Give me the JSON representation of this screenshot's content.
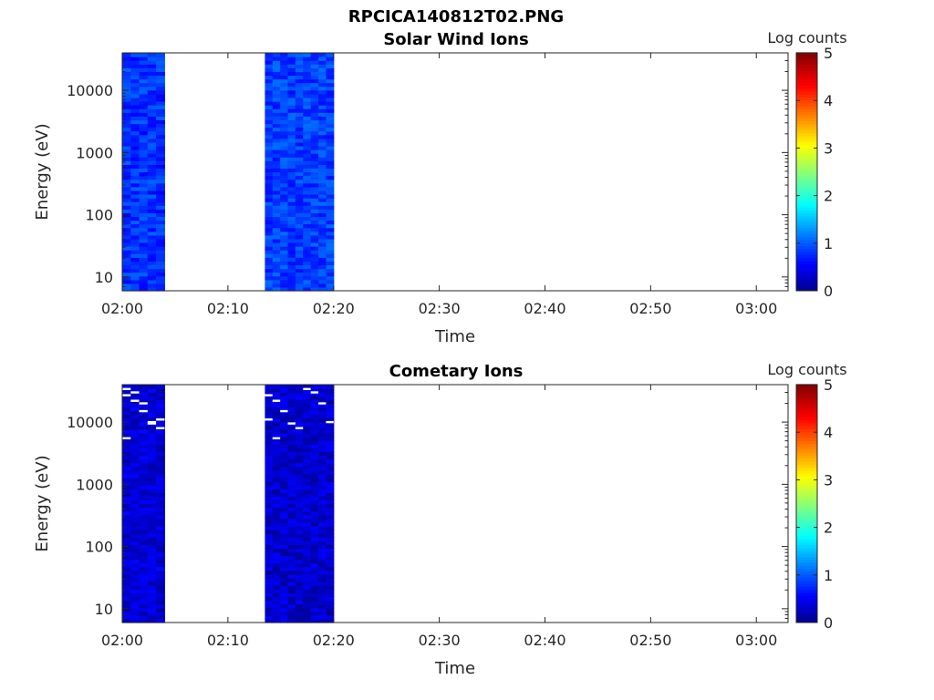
{
  "figure_title": "RPCICA140812T02.PNG",
  "colors": {
    "colormap": [
      "#00008f",
      "#0000ff",
      "#00ffff",
      "#ffff00",
      "#ff0000",
      "#800000"
    ],
    "empty": "#ffffff",
    "gap_line": "#ffffff"
  },
  "chart_data": [
    {
      "type": "heatmap",
      "title": "Solar Wind Ions",
      "xlabel": "Time",
      "ylabel": "Energy (eV)",
      "xlim": [
        "02:00",
        "03:03"
      ],
      "xticks": [
        "02:00",
        "02:10",
        "02:20",
        "02:30",
        "02:40",
        "02:50",
        "03:00"
      ],
      "yscale": "log",
      "ylim": [
        6,
        40000
      ],
      "yticks": [
        "10",
        "100",
        "1000",
        "10000"
      ],
      "colorbar": {
        "label": "Log counts",
        "range": [
          0,
          5
        ],
        "ticks": [
          "0",
          "1",
          "2",
          "3",
          "4",
          "5"
        ]
      },
      "data_blocks": [
        {
          "start": "02:00",
          "end": "02:04",
          "log_counts_level": 0.8
        },
        {
          "start": "02:13.5",
          "end": "02:20",
          "log_counts_level": 0.85
        }
      ],
      "gap_energies_eV": []
    },
    {
      "type": "heatmap",
      "title": "Cometary Ions",
      "xlabel": "Time",
      "ylabel": "Energy (eV)",
      "xlim": [
        "02:00",
        "03:03"
      ],
      "xticks": [
        "02:00",
        "02:10",
        "02:20",
        "02:30",
        "02:40",
        "02:50",
        "03:00"
      ],
      "yscale": "log",
      "ylim": [
        6,
        40000
      ],
      "yticks": [
        "10",
        "100",
        "1000",
        "10000"
      ],
      "colorbar": {
        "label": "Log counts",
        "range": [
          0,
          5
        ],
        "ticks": [
          "0",
          "1",
          "2",
          "3",
          "4",
          "5"
        ]
      },
      "data_blocks": [
        {
          "start": "02:00",
          "end": "02:04",
          "log_counts_level": 0.35
        },
        {
          "start": "02:13.5",
          "end": "02:20",
          "log_counts_level": 0.3
        }
      ],
      "gap_energies_eV": [
        27000,
        22000,
        15000,
        9500,
        8000,
        34000,
        30000,
        20000,
        10000,
        11000,
        5500
      ]
    }
  ]
}
